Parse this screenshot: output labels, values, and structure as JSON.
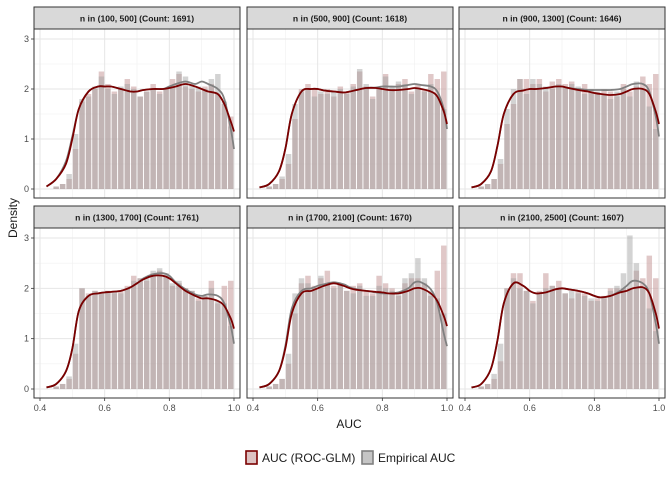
{
  "chart_data": {
    "type": "bar",
    "subtype": "faceted histogram with density overlays",
    "xlabel": "AUC",
    "ylabel": "Density",
    "xlim": [
      0.4,
      1.0
    ],
    "ylim": [
      0,
      3
    ],
    "x_ticks": [
      "0.4",
      "0.6",
      "0.8",
      "1.0"
    ],
    "y_ticks": [
      "0",
      "1",
      "2",
      "3"
    ],
    "grid": true,
    "legend_position": "bottom",
    "colors": {
      "roc_glm_line": "#7a0000",
      "roc_glm_fill": "#c79a9a",
      "empirical_line": "#808080",
      "empirical_fill": "#9e9e9e"
    },
    "legend": [
      {
        "label": "AUC (ROC-GLM)",
        "key": "roc_glm"
      },
      {
        "label": "Empirical AUC",
        "key": "empirical"
      }
    ],
    "facets": [
      {
        "label": "n in (100, 500] (Count: 1691)",
        "hist_x": [
          0.45,
          0.47,
          0.49,
          0.51,
          0.53,
          0.55,
          0.57,
          0.59,
          0.61,
          0.63,
          0.65,
          0.67,
          0.69,
          0.71,
          0.73,
          0.75,
          0.77,
          0.79,
          0.81,
          0.83,
          0.85,
          0.87,
          0.89,
          0.91,
          0.93,
          0.95,
          0.97,
          0.99
        ],
        "roc_glm_hist": [
          0.05,
          0.1,
          0.2,
          0.8,
          1.75,
          1.9,
          2.0,
          2.35,
          2.1,
          1.95,
          2.0,
          2.2,
          2.05,
          1.85,
          1.95,
          2.1,
          1.95,
          2.0,
          2.2,
          2.3,
          2.05,
          2.0,
          1.95,
          2.05,
          2.1,
          1.9,
          1.7,
          1.45
        ],
        "empirical_hist": [
          0.05,
          0.1,
          0.3,
          1.1,
          1.8,
          1.85,
          2.05,
          2.25,
          2.0,
          1.9,
          2.05,
          2.1,
          2.0,
          1.85,
          1.95,
          2.0,
          1.9,
          2.0,
          2.05,
          2.35,
          2.25,
          2.1,
          2.05,
          2.0,
          2.2,
          2.3,
          1.75,
          1.25
        ],
        "density_x": [
          0.42,
          0.45,
          0.48,
          0.5,
          0.52,
          0.55,
          0.58,
          0.6,
          0.62,
          0.65,
          0.68,
          0.7,
          0.72,
          0.75,
          0.78,
          0.8,
          0.82,
          0.85,
          0.88,
          0.9,
          0.92,
          0.95,
          0.97,
          0.99,
          1.0
        ],
        "roc_glm_density": [
          0.05,
          0.2,
          0.5,
          1.0,
          1.6,
          1.95,
          2.05,
          2.05,
          2.05,
          2.0,
          1.95,
          1.95,
          1.98,
          2.0,
          2.0,
          2.02,
          2.05,
          2.1,
          2.05,
          2.0,
          1.95,
          1.9,
          1.7,
          1.35,
          1.15
        ],
        "empirical_density": [
          0.05,
          0.2,
          0.55,
          1.05,
          1.6,
          1.95,
          2.05,
          2.05,
          2.05,
          2.0,
          1.95,
          1.95,
          1.98,
          2.0,
          2.0,
          2.05,
          2.1,
          2.15,
          2.1,
          2.15,
          2.1,
          2.0,
          1.8,
          1.2,
          0.8
        ]
      },
      {
        "label": "n in (500, 900] (Count: 1618)",
        "hist_x": [
          0.45,
          0.47,
          0.49,
          0.51,
          0.53,
          0.55,
          0.57,
          0.59,
          0.61,
          0.63,
          0.65,
          0.67,
          0.69,
          0.71,
          0.73,
          0.75,
          0.77,
          0.79,
          0.81,
          0.83,
          0.85,
          0.87,
          0.89,
          0.91,
          0.93,
          0.95,
          0.97,
          0.99
        ],
        "roc_glm_hist": [
          0.05,
          0.1,
          0.2,
          0.5,
          1.4,
          2.0,
          2.1,
          2.0,
          1.9,
          2.0,
          1.85,
          2.05,
          1.95,
          2.1,
          2.35,
          2.05,
          1.85,
          2.0,
          2.3,
          2.0,
          2.1,
          2.2,
          1.95,
          2.1,
          2.0,
          2.3,
          2.2,
          2.35
        ],
        "empirical_hist": [
          0.05,
          0.1,
          0.25,
          0.7,
          1.7,
          1.95,
          2.0,
          1.85,
          1.95,
          1.9,
          1.95,
          2.0,
          1.9,
          2.05,
          2.4,
          2.1,
          1.8,
          2.0,
          2.25,
          2.05,
          2.15,
          2.1,
          1.9,
          2.0,
          1.95,
          2.1,
          1.9,
          1.6
        ],
        "density_x": [
          0.42,
          0.45,
          0.48,
          0.5,
          0.52,
          0.55,
          0.58,
          0.6,
          0.62,
          0.65,
          0.68,
          0.7,
          0.72,
          0.75,
          0.78,
          0.8,
          0.82,
          0.85,
          0.88,
          0.9,
          0.92,
          0.95,
          0.97,
          0.99,
          1.0
        ],
        "roc_glm_density": [
          0.03,
          0.1,
          0.35,
          0.8,
          1.5,
          1.95,
          2.0,
          2.0,
          1.97,
          1.95,
          1.93,
          1.95,
          1.98,
          2.02,
          2.02,
          2.0,
          1.98,
          1.98,
          2.0,
          2.02,
          2.0,
          1.95,
          1.85,
          1.55,
          1.3
        ],
        "empirical_density": [
          0.03,
          0.1,
          0.35,
          0.8,
          1.5,
          1.95,
          2.0,
          2.0,
          1.97,
          1.95,
          1.93,
          1.95,
          1.98,
          2.02,
          2.03,
          2.05,
          2.05,
          2.05,
          2.08,
          2.1,
          2.08,
          2.05,
          1.95,
          1.6,
          1.2
        ]
      },
      {
        "label": "n in (900, 1300] (Count: 1646)",
        "hist_x": [
          0.45,
          0.47,
          0.49,
          0.51,
          0.53,
          0.55,
          0.57,
          0.59,
          0.61,
          0.63,
          0.65,
          0.67,
          0.69,
          0.71,
          0.73,
          0.75,
          0.77,
          0.79,
          0.81,
          0.83,
          0.85,
          0.87,
          0.89,
          0.91,
          0.93,
          0.95,
          0.97,
          0.99
        ],
        "roc_glm_hist": [
          0.05,
          0.1,
          0.2,
          0.5,
          1.3,
          1.7,
          2.2,
          2.2,
          2.1,
          2.2,
          1.95,
          2.15,
          2.2,
          2.1,
          2.15,
          2.0,
          2.1,
          1.95,
          1.9,
          2.0,
          1.95,
          1.85,
          2.1,
          1.95,
          2.05,
          2.25,
          2.1,
          2.3
        ],
        "empirical_hist": [
          0.05,
          0.1,
          0.2,
          0.6,
          1.6,
          2.0,
          2.2,
          1.9,
          2.2,
          2.1,
          2.05,
          2.0,
          2.1,
          2.05,
          2.1,
          2.05,
          1.9,
          2.0,
          1.95,
          1.9,
          1.8,
          1.95,
          2.0,
          1.85,
          2.15,
          2.0,
          1.65,
          1.2
        ],
        "density_x": [
          0.42,
          0.45,
          0.48,
          0.5,
          0.52,
          0.55,
          0.58,
          0.6,
          0.62,
          0.65,
          0.68,
          0.7,
          0.72,
          0.75,
          0.78,
          0.8,
          0.82,
          0.85,
          0.88,
          0.9,
          0.92,
          0.95,
          0.97,
          0.99,
          1.0
        ],
        "roc_glm_density": [
          0.03,
          0.1,
          0.35,
          0.85,
          1.5,
          1.9,
          1.97,
          2.0,
          2.0,
          2.02,
          2.05,
          2.05,
          2.02,
          1.98,
          1.95,
          1.92,
          1.9,
          1.88,
          1.9,
          1.95,
          2.0,
          2.0,
          1.9,
          1.55,
          1.3
        ],
        "empirical_density": [
          0.03,
          0.1,
          0.35,
          0.85,
          1.5,
          1.9,
          1.97,
          2.0,
          2.0,
          2.02,
          2.05,
          2.05,
          2.02,
          2.0,
          1.98,
          1.98,
          1.98,
          1.98,
          2.0,
          2.05,
          2.1,
          2.1,
          1.95,
          1.45,
          1.05
        ]
      },
      {
        "label": "n in (1300, 1700] (Count: 1761)",
        "hist_x": [
          0.45,
          0.47,
          0.49,
          0.51,
          0.53,
          0.55,
          0.57,
          0.59,
          0.61,
          0.63,
          0.65,
          0.67,
          0.69,
          0.71,
          0.73,
          0.75,
          0.77,
          0.79,
          0.81,
          0.83,
          0.85,
          0.87,
          0.89,
          0.91,
          0.93,
          0.95,
          0.97,
          0.99
        ],
        "roc_glm_hist": [
          0.05,
          0.1,
          0.2,
          0.7,
          2.0,
          1.9,
          1.95,
          1.9,
          1.95,
          1.9,
          1.95,
          2.05,
          2.25,
          2.2,
          2.15,
          2.3,
          2.35,
          2.25,
          2.05,
          2.1,
          2.0,
          1.95,
          1.8,
          1.85,
          2.15,
          1.7,
          2.05,
          2.15
        ],
        "empirical_hist": [
          0.05,
          0.1,
          0.25,
          0.9,
          2.0,
          1.85,
          1.95,
          1.9,
          1.95,
          1.95,
          1.9,
          2.0,
          2.15,
          2.2,
          2.2,
          2.35,
          2.4,
          2.3,
          2.1,
          2.15,
          2.0,
          1.95,
          1.75,
          1.85,
          2.0,
          1.75,
          1.7,
          1.25
        ],
        "density_x": [
          0.42,
          0.45,
          0.48,
          0.5,
          0.52,
          0.55,
          0.58,
          0.6,
          0.62,
          0.65,
          0.68,
          0.7,
          0.72,
          0.75,
          0.78,
          0.8,
          0.82,
          0.85,
          0.88,
          0.9,
          0.92,
          0.95,
          0.97,
          0.99,
          1.0
        ],
        "roc_glm_density": [
          0.03,
          0.1,
          0.35,
          0.8,
          1.55,
          1.85,
          1.9,
          1.92,
          1.93,
          1.95,
          2.02,
          2.1,
          2.18,
          2.25,
          2.25,
          2.2,
          2.1,
          1.95,
          1.85,
          1.8,
          1.8,
          1.75,
          1.65,
          1.4,
          1.2
        ],
        "empirical_density": [
          0.03,
          0.1,
          0.35,
          0.8,
          1.55,
          1.85,
          1.9,
          1.92,
          1.93,
          1.95,
          2.02,
          2.1,
          2.2,
          2.28,
          2.3,
          2.25,
          2.12,
          1.98,
          1.88,
          1.85,
          1.88,
          1.85,
          1.7,
          1.25,
          0.9
        ]
      },
      {
        "label": "n in (1700, 2100] (Count: 1670)",
        "hist_x": [
          0.45,
          0.47,
          0.49,
          0.51,
          0.53,
          0.55,
          0.57,
          0.59,
          0.61,
          0.63,
          0.65,
          0.67,
          0.69,
          0.71,
          0.73,
          0.75,
          0.77,
          0.79,
          0.81,
          0.83,
          0.85,
          0.87,
          0.89,
          0.91,
          0.93,
          0.95,
          0.97,
          0.99
        ],
        "roc_glm_hist": [
          0.05,
          0.1,
          0.2,
          0.5,
          1.5,
          2.1,
          2.25,
          2.05,
          2.2,
          2.35,
          2.05,
          2.1,
          1.95,
          2.05,
          2.1,
          1.95,
          1.9,
          2.25,
          2.1,
          2.0,
          1.85,
          2.1,
          2.2,
          2.2,
          2.1,
          1.85,
          2.35,
          2.85
        ],
        "empirical_hist": [
          0.05,
          0.1,
          0.2,
          0.7,
          1.9,
          2.2,
          2.1,
          2.0,
          2.25,
          2.1,
          2.0,
          2.1,
          1.95,
          1.9,
          2.05,
          1.85,
          1.85,
          2.05,
          2.0,
          1.95,
          1.9,
          2.2,
          2.3,
          2.6,
          2.2,
          1.95,
          1.8,
          1.5
        ],
        "density_x": [
          0.42,
          0.45,
          0.48,
          0.5,
          0.52,
          0.55,
          0.58,
          0.6,
          0.62,
          0.65,
          0.68,
          0.7,
          0.72,
          0.75,
          0.78,
          0.8,
          0.82,
          0.85,
          0.88,
          0.9,
          0.92,
          0.95,
          0.97,
          0.99,
          1.0
        ],
        "roc_glm_density": [
          0.03,
          0.1,
          0.35,
          0.8,
          1.5,
          1.9,
          1.95,
          2.0,
          2.05,
          2.1,
          2.05,
          2.0,
          1.97,
          1.95,
          1.93,
          1.92,
          1.9,
          1.9,
          1.95,
          2.0,
          2.0,
          1.9,
          1.75,
          1.45,
          1.25
        ],
        "empirical_density": [
          0.03,
          0.1,
          0.35,
          0.85,
          1.6,
          1.95,
          2.0,
          2.05,
          2.08,
          2.12,
          2.08,
          2.02,
          1.98,
          1.95,
          1.92,
          1.9,
          1.9,
          1.92,
          2.0,
          2.12,
          2.12,
          1.98,
          1.7,
          1.1,
          0.85
        ]
      },
      {
        "label": "n in (2100, 2500] (Count: 1607)",
        "hist_x": [
          0.45,
          0.47,
          0.49,
          0.51,
          0.53,
          0.55,
          0.57,
          0.59,
          0.61,
          0.63,
          0.65,
          0.67,
          0.69,
          0.71,
          0.73,
          0.75,
          0.77,
          0.79,
          0.81,
          0.83,
          0.85,
          0.87,
          0.89,
          0.91,
          0.93,
          0.95,
          0.97,
          0.99
        ],
        "roc_glm_hist": [
          0.05,
          0.1,
          0.2,
          0.55,
          2.0,
          2.3,
          2.3,
          1.95,
          1.75,
          1.95,
          2.3,
          2.05,
          2.15,
          1.9,
          1.8,
          1.95,
          1.9,
          1.75,
          1.8,
          1.85,
          2.0,
          2.0,
          2.0,
          2.0,
          2.35,
          2.2,
          2.65,
          2.2
        ],
        "empirical_hist": [
          0.05,
          0.1,
          0.3,
          0.9,
          2.0,
          2.2,
          2.0,
          1.95,
          1.7,
          1.9,
          2.0,
          2.05,
          2.0,
          1.9,
          1.95,
          1.9,
          1.85,
          1.8,
          1.75,
          1.8,
          1.95,
          2.05,
          2.3,
          3.05,
          2.5,
          2.0,
          1.6,
          1.15
        ],
        "density_x": [
          0.42,
          0.45,
          0.48,
          0.5,
          0.52,
          0.55,
          0.58,
          0.6,
          0.62,
          0.65,
          0.68,
          0.7,
          0.72,
          0.75,
          0.78,
          0.8,
          0.82,
          0.85,
          0.88,
          0.9,
          0.92,
          0.95,
          0.97,
          0.99,
          1.0
        ],
        "roc_glm_density": [
          0.03,
          0.1,
          0.4,
          0.95,
          1.7,
          2.1,
          2.05,
          1.95,
          1.9,
          1.92,
          1.98,
          2.0,
          1.98,
          1.95,
          1.9,
          1.85,
          1.82,
          1.85,
          1.92,
          1.95,
          2.0,
          2.02,
          1.9,
          1.5,
          1.2
        ],
        "empirical_density": [
          0.03,
          0.1,
          0.4,
          0.95,
          1.7,
          2.1,
          2.05,
          1.95,
          1.9,
          1.92,
          1.98,
          2.0,
          1.98,
          1.95,
          1.9,
          1.85,
          1.82,
          1.85,
          1.95,
          2.05,
          2.15,
          2.1,
          1.9,
          1.3,
          0.9
        ]
      }
    ]
  }
}
